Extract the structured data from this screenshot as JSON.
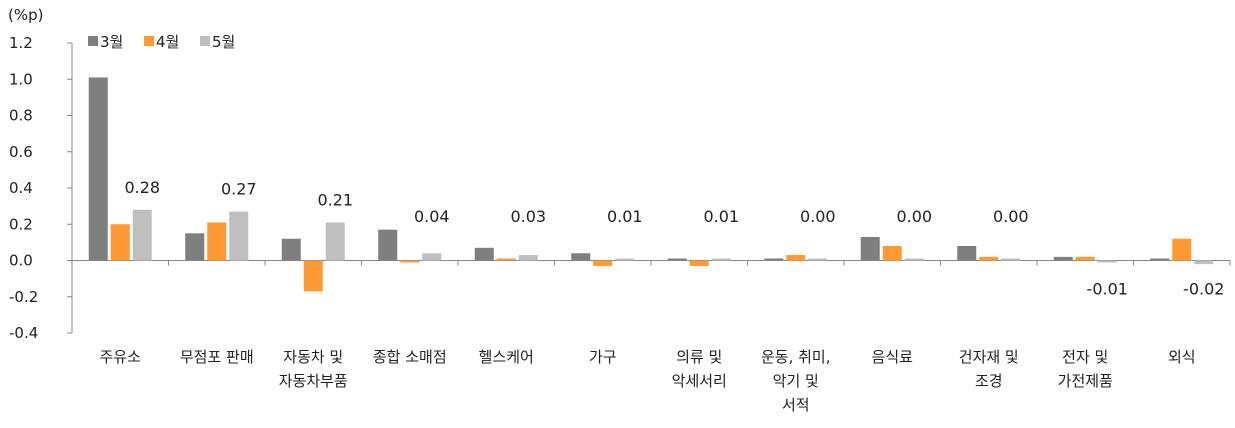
{
  "chart_data": {
    "type": "bar",
    "unit": "(%p)",
    "categories": [
      [
        "주유소"
      ],
      [
        "무점포 판매"
      ],
      [
        "자동차 및",
        "자동차부품"
      ],
      [
        "종합 소매점"
      ],
      [
        "헬스케어"
      ],
      [
        "가구"
      ],
      [
        "의류 및",
        "악세서리"
      ],
      [
        "운동, 취미,",
        "악기 및",
        "서적"
      ],
      [
        "음식료"
      ],
      [
        "건자재 및",
        "조경"
      ],
      [
        "전자 및",
        "가전제품"
      ],
      [
        "외식"
      ]
    ],
    "series": [
      {
        "name": "3월",
        "color": "#7f7f7f",
        "values": [
          1.01,
          0.15,
          0.12,
          0.17,
          0.07,
          0.04,
          0.01,
          0.01,
          0.13,
          0.08,
          0.02,
          0.01
        ]
      },
      {
        "name": "4월",
        "color": "#ff9933",
        "values": [
          0.2,
          0.21,
          -0.17,
          -0.01,
          0.01,
          -0.03,
          -0.03,
          0.03,
          0.08,
          0.02,
          0.02,
          0.12
        ]
      },
      {
        "name": "5월",
        "color": "#bfbfbf",
        "values": [
          0.28,
          0.27,
          0.21,
          0.04,
          0.03,
          0.01,
          0.01,
          0.0,
          0.0,
          0.0,
          -0.01,
          -0.02
        ]
      }
    ],
    "data_labels": [
      "0.28",
      "0.27",
      "0.21",
      "0.04",
      "0.03",
      "0.01",
      "0.01",
      "0.00",
      "0.00",
      "0.00",
      "-0.01",
      "-0.02"
    ],
    "yticks": [
      "1.2",
      "1.0",
      "0.8",
      "0.6",
      "0.4",
      "0.2",
      "0.0",
      "-0.2",
      "-0.4"
    ],
    "ylim": [
      -0.4,
      1.2
    ],
    "legend_position": "top-left",
    "grid": false
  }
}
